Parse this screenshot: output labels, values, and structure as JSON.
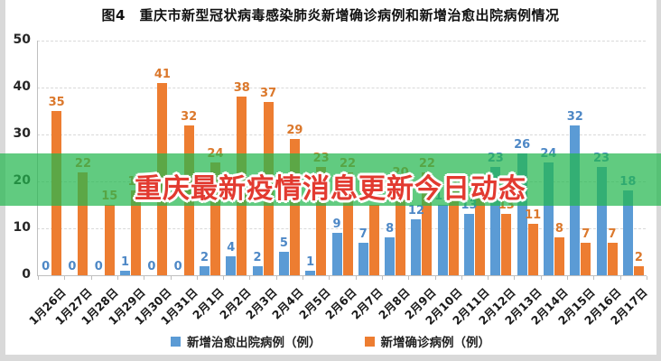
{
  "title": "图4　重庆市新型冠状病毒感染肺炎新增确诊病例和新增治愈出院病例情况",
  "overlay": {
    "text": "重庆最新疫情消息更新今日动态",
    "text_color": "#e23a30",
    "band_color": "rgba(36,183,79,0.72)"
  },
  "legend": [
    {
      "label": "新增治愈出院病例（例）",
      "color": "#5B9BD5"
    },
    {
      "label": "新增确诊病例（例）",
      "color": "#ED7D31"
    }
  ],
  "chart_data": {
    "type": "bar",
    "title": "图4　重庆市新型冠状病毒感染肺炎新增确诊病例和新增治愈出院病例情况",
    "categories": [
      "1月26日",
      "1月27日",
      "1月28日",
      "1月29日",
      "1月30日",
      "1月31日",
      "2月1日",
      "2月2日",
      "2月3日",
      "2月4日",
      "2月5日",
      "2月6日",
      "2月7日",
      "2月8日",
      "2月9日",
      "2月10日",
      "2月11日",
      "2月12日",
      "2月13日",
      "2月14日",
      "2月15日",
      "2月16日",
      "2月17日"
    ],
    "series": [
      {
        "name": "新增治愈出院病例（例）",
        "color": "#5B9BD5",
        "label_color": "#4E88C6",
        "values": [
          0,
          0,
          0,
          1,
          0,
          0,
          2,
          4,
          2,
          5,
          1,
          9,
          7,
          8,
          12,
          15,
          13,
          23,
          26,
          24,
          32,
          23,
          18
        ]
      },
      {
        "name": "新增确诊病例（例）",
        "color": "#ED7D31",
        "label_color": "#DB782C",
        "values": [
          35,
          22,
          15,
          18,
          41,
          32,
          24,
          38,
          37,
          29,
          23,
          22,
          15,
          20,
          22,
          18,
          18,
          13,
          11,
          8,
          7,
          7,
          2
        ]
      }
    ],
    "xlabel": "",
    "ylabel": "",
    "ylim": [
      0,
      50
    ],
    "yticks": [
      0,
      10,
      20,
      30,
      40,
      50
    ],
    "grid": "horizontal-dashed",
    "legend_position": "bottom"
  }
}
